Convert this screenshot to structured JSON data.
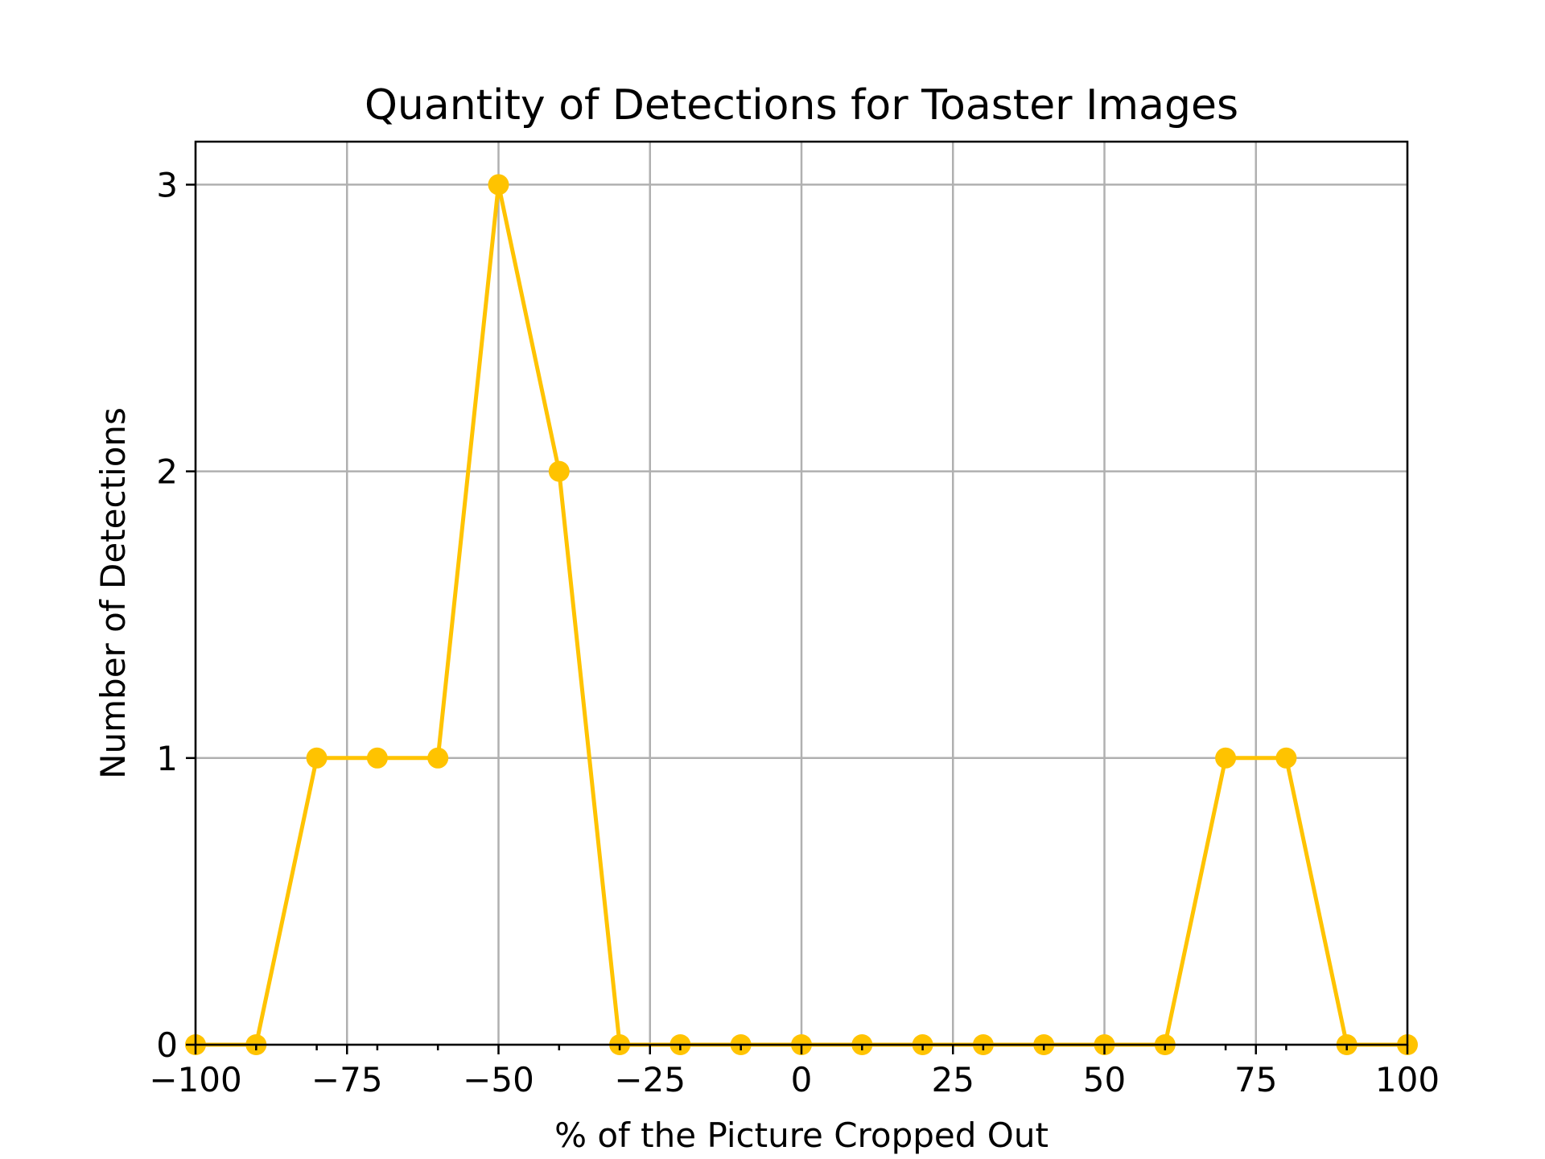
{
  "chart_data": {
    "type": "line",
    "title": "Quantity of Detections for Toaster Images",
    "xlabel": "% of the Picture Cropped Out",
    "ylabel": "Number of Detections",
    "xlim": [
      -100,
      100
    ],
    "ylim": [
      0,
      3.15
    ],
    "x_ticks": [
      -100,
      -75,
      -50,
      -25,
      0,
      25,
      50,
      75,
      100
    ],
    "x_tick_labels": [
      "−100",
      "−75",
      "−50",
      "−25",
      "0",
      "25",
      "50",
      "75",
      "100"
    ],
    "x_minor_ticks": [
      -90,
      -80,
      -70,
      -60,
      -40,
      -30,
      -20,
      -10,
      10,
      20,
      30,
      40,
      60,
      70,
      80,
      90
    ],
    "y_ticks": [
      0,
      1,
      2,
      3
    ],
    "y_tick_labels": [
      "0",
      "1",
      "2",
      "3"
    ],
    "grid": true,
    "series": [
      {
        "color": "#ffc300",
        "marker": "circle",
        "x": [
          -100,
          -90,
          -80,
          -70,
          -60,
          -50,
          -40,
          -30,
          -20,
          -10,
          0,
          10,
          20,
          30,
          40,
          50,
          60,
          70,
          80,
          90,
          100
        ],
        "y": [
          0,
          0,
          1,
          1,
          1,
          3,
          2,
          0,
          0,
          0,
          0,
          0,
          0,
          0,
          0,
          0,
          0,
          1,
          1,
          0,
          0
        ]
      }
    ]
  }
}
